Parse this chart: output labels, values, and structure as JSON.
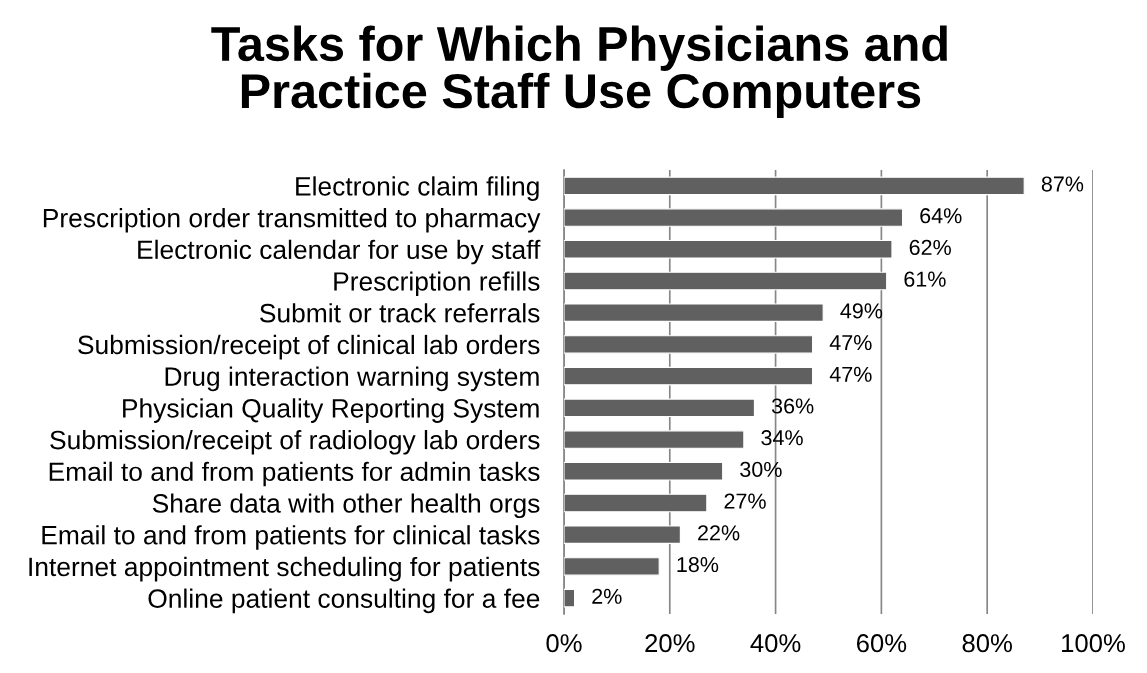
{
  "chart_data": {
    "type": "bar",
    "orientation": "horizontal",
    "title": "Tasks for Which Physicians and\nPractice Staff Use Computers",
    "categories": [
      "Electronic claim filing",
      "Prescription order transmitted to pharmacy",
      "Electronic calendar for use by staff",
      "Prescription refills",
      "Submit or track referrals",
      "Submission/receipt of clinical lab orders",
      "Drug interaction warning system",
      "Physician Quality Reporting System",
      "Submission/receipt of radiology lab orders",
      "Email to and from patients for admin tasks",
      "Share data with other health orgs",
      "Email to and from patients for clinical tasks",
      "Internet appointment scheduling for patients",
      "Online patient consulting for a fee"
    ],
    "values": [
      87,
      64,
      62,
      61,
      49,
      47,
      47,
      36,
      34,
      30,
      27,
      22,
      18,
      2
    ],
    "value_labels": [
      "87%",
      "64%",
      "62%",
      "61%",
      "49%",
      "47%",
      "47%",
      "36%",
      "34%",
      "30%",
      "27%",
      "22%",
      "18%",
      "2%"
    ],
    "color": "#606060",
    "xlim": [
      0,
      100
    ],
    "xticks": [
      {
        "value": 0,
        "label": "0%"
      },
      {
        "value": 20,
        "label": "20%"
      },
      {
        "value": 40,
        "label": "40%"
      },
      {
        "value": 60,
        "label": "60%"
      },
      {
        "value": 80,
        "label": "80%"
      },
      {
        "value": 100,
        "label": "100%"
      }
    ],
    "grid": "x",
    "legend": false
  }
}
